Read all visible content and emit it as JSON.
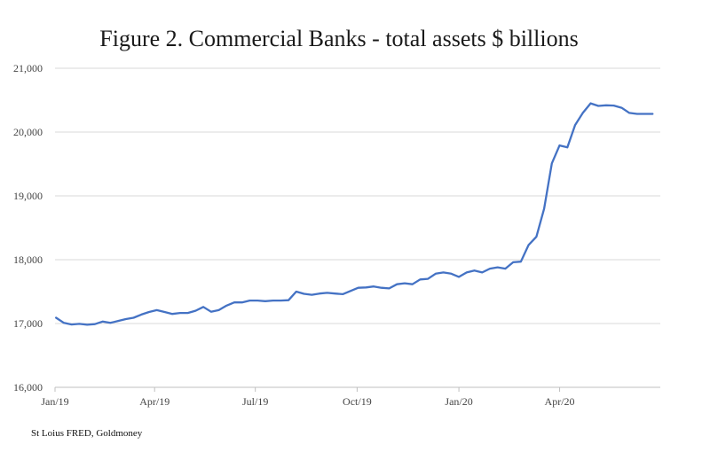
{
  "chart_data": {
    "type": "line",
    "title": "Figure 2. Commercial Banks - total assets $ billions",
    "source": "St Loius FRED, Goldmoney",
    "xlabel": "",
    "ylabel": "",
    "ylim": [
      16000,
      21000
    ],
    "yticks": [
      16000,
      17000,
      18000,
      19000,
      20000,
      21000
    ],
    "ytick_labels": [
      "16,000",
      "17,000",
      "18,000",
      "19,000",
      "20,000",
      "21,000"
    ],
    "x_range": [
      "2019-01-01",
      "2020-07-01"
    ],
    "xticks": [
      {
        "date": "2019-01-01",
        "label": "Jan/19"
      },
      {
        "date": "2019-04-01",
        "label": "Apr/19"
      },
      {
        "date": "2019-07-01",
        "label": "Jul/19"
      },
      {
        "date": "2019-10-01",
        "label": "Oct/19"
      },
      {
        "date": "2020-01-01",
        "label": "Jan/20"
      },
      {
        "date": "2020-04-01",
        "label": "Apr/20"
      }
    ],
    "grid": true,
    "legend": "none",
    "series_color": "#4472C4",
    "series": [
      {
        "x": [
          "2019-01-02",
          "2019-01-09",
          "2019-01-16",
          "2019-01-23",
          "2019-01-30",
          "2019-02-06",
          "2019-02-13",
          "2019-02-20",
          "2019-02-27",
          "2019-03-06",
          "2019-03-13",
          "2019-03-20",
          "2019-03-27",
          "2019-04-03",
          "2019-04-10",
          "2019-04-17",
          "2019-04-24",
          "2019-05-01",
          "2019-05-08",
          "2019-05-15",
          "2019-05-22",
          "2019-05-29",
          "2019-06-05",
          "2019-06-12",
          "2019-06-19",
          "2019-06-26",
          "2019-07-03",
          "2019-07-10",
          "2019-07-17",
          "2019-07-24",
          "2019-07-31",
          "2019-08-07",
          "2019-08-14",
          "2019-08-21",
          "2019-08-28",
          "2019-09-04",
          "2019-09-11",
          "2019-09-18",
          "2019-09-25",
          "2019-10-02",
          "2019-10-09",
          "2019-10-16",
          "2019-10-23",
          "2019-10-30",
          "2019-11-06",
          "2019-11-13",
          "2019-11-20",
          "2019-11-27",
          "2019-12-04",
          "2019-12-11",
          "2019-12-18",
          "2019-12-25",
          "2020-01-01",
          "2020-01-08",
          "2020-01-15",
          "2020-01-22",
          "2020-01-29",
          "2020-02-05",
          "2020-02-12",
          "2020-02-19",
          "2020-02-26",
          "2020-03-04",
          "2020-03-11",
          "2020-03-18",
          "2020-03-25",
          "2020-04-01",
          "2020-04-08",
          "2020-04-15",
          "2020-04-22",
          "2020-04-29",
          "2020-05-06",
          "2020-05-13",
          "2020-05-20",
          "2020-05-27",
          "2020-06-03",
          "2020-06-10",
          "2020-06-17",
          "2020-06-24"
        ],
        "values": [
          17090,
          17010,
          16985,
          16995,
          16980,
          16990,
          17030,
          17010,
          17040,
          17070,
          17090,
          17140,
          17180,
          17210,
          17180,
          17150,
          17165,
          17165,
          17200,
          17260,
          17185,
          17210,
          17280,
          17330,
          17330,
          17360,
          17360,
          17350,
          17360,
          17360,
          17365,
          17500,
          17465,
          17450,
          17470,
          17480,
          17470,
          17460,
          17510,
          17560,
          17565,
          17580,
          17560,
          17550,
          17615,
          17630,
          17615,
          17690,
          17700,
          17780,
          17800,
          17780,
          17730,
          17800,
          17830,
          17800,
          17860,
          17880,
          17860,
          17960,
          17970,
          18230,
          18360,
          18800,
          19510,
          19790,
          19760,
          20110,
          20300,
          20450,
          20410,
          20420,
          20415,
          20380,
          20300,
          20285,
          20285,
          20285
        ]
      }
    ]
  }
}
